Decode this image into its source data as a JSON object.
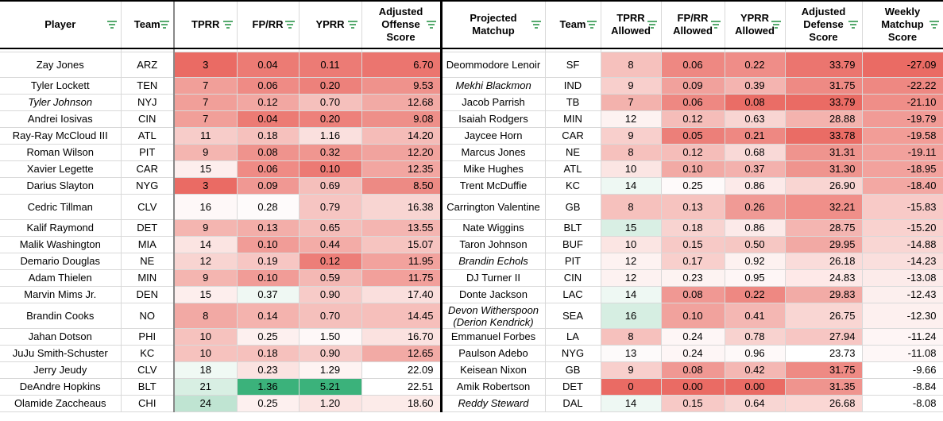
{
  "headers_offense": [
    "Player",
    "Team",
    "TPRR",
    "FP/RR",
    "YPRR",
    "Adjusted Offense Score"
  ],
  "headers_defense": [
    "Projected Matchup",
    "Team",
    "TPRR Allowed",
    "FP/RR Allowed",
    "YPRR Allowed",
    "Adjusted Defense Score",
    "Weekly Matchup Score"
  ],
  "rows": [
    {
      "player": "Zay Jones",
      "team": "ARZ",
      "tprr": "3",
      "fprr": "0.04",
      "yprr": "0.11",
      "aos": "6.70",
      "opp": "Deommodore Lenoir",
      "oteam": "SF",
      "dtprr": "8",
      "dfprr": "0.06",
      "dyprr": "0.22",
      "ads": "33.79",
      "wms": "-27.09",
      "tall": true,
      "pit": false,
      "oit": false,
      "c": [
        "#ea6b64",
        "#ec7b74",
        "#ec7b75",
        "#eb756f",
        "#f6c1bd",
        "#ee8882",
        "#ef8d88",
        "#eb756f",
        "#ea6b64"
      ]
    },
    {
      "player": "Tyler Lockett",
      "team": "TEN",
      "tprr": "7",
      "fprr": "0.06",
      "yprr": "0.20",
      "aos": "9.53",
      "opp": "Mekhi Blackmon",
      "oteam": "IND",
      "dtprr": "9",
      "dfprr": "0.09",
      "dyprr": "0.39",
      "ads": "31.75",
      "wms": "-22.22",
      "tall": false,
      "pit": false,
      "oit": true,
      "c": [
        "#f19f99",
        "#ef8b85",
        "#ed817b",
        "#ef928c",
        "#f8cfcc",
        "#f1a19c",
        "#f4b4b0",
        "#ee8a84",
        "#ee8882"
      ]
    },
    {
      "player": "Tyler Johnson",
      "team": "NYJ",
      "tprr": "7",
      "fprr": "0.12",
      "yprr": "0.70",
      "aos": "12.68",
      "opp": "Jacob Parrish",
      "oteam": "TB",
      "dtprr": "7",
      "dfprr": "0.06",
      "dyprr": "0.08",
      "ads": "33.79",
      "wms": "-21.10",
      "tall": false,
      "pit": true,
      "oit": false,
      "c": [
        "#f19f99",
        "#f2a7a2",
        "#f5c0bc",
        "#f2aaa5",
        "#f3b2ad",
        "#ee8882",
        "#ea6d66",
        "#ea6b64",
        "#ef8e88"
      ]
    },
    {
      "player": "Andrei Iosivas",
      "team": "CIN",
      "tprr": "7",
      "fprr": "0.04",
      "yprr": "0.20",
      "aos": "9.08",
      "opp": "Isaiah Rodgers",
      "oteam": "MIN",
      "dtprr": "12",
      "dfprr": "0.12",
      "dyprr": "0.63",
      "ads": "28.88",
      "wms": "-19.79",
      "tall": false,
      "pit": false,
      "oit": false,
      "c": [
        "#f19f99",
        "#ec7b74",
        "#ed817b",
        "#ee8f89",
        "#fdf2f1",
        "#f5bdb9",
        "#f8d5d2",
        "#f4b3ae",
        "#f19b96"
      ]
    },
    {
      "player": "Ray-Ray McCloud III",
      "team": "ATL",
      "tprr": "11",
      "fprr": "0.18",
      "yprr": "1.16",
      "aos": "14.20",
      "opp": "Jaycee Horn",
      "oteam": "CAR",
      "dtprr": "9",
      "dfprr": "0.05",
      "dyprr": "0.21",
      "ads": "33.78",
      "wms": "-19.58",
      "tall": false,
      "pit": false,
      "oit": false,
      "c": [
        "#f7ccc9",
        "#f6c1bd",
        "#fae0de",
        "#f5bcb8",
        "#f8cfcc",
        "#ec7f79",
        "#ee8882",
        "#ea6c65",
        "#f29d97"
      ]
    },
    {
      "player": "Roman Wilson",
      "team": "PIT",
      "tprr": "9",
      "fprr": "0.08",
      "yprr": "0.32",
      "aos": "12.20",
      "opp": "Marcus Jones",
      "oteam": "NE",
      "dtprr": "8",
      "dfprr": "0.12",
      "dyprr": "0.68",
      "ads": "31.31",
      "wms": "-19.11",
      "tall": false,
      "pit": false,
      "oit": false,
      "c": [
        "#f4b5b0",
        "#ef938d",
        "#f09690",
        "#f1a39e",
        "#f6c1bd",
        "#f5bdb9",
        "#f9d9d7",
        "#ef948e",
        "#f2a19c"
      ]
    },
    {
      "player": "Xavier Legette",
      "team": "CAR",
      "tprr": "15",
      "fprr": "0.06",
      "yprr": "0.10",
      "aos": "12.35",
      "opp": "Mike Hughes",
      "oteam": "ATL",
      "dtprr": "10",
      "dfprr": "0.10",
      "dyprr": "0.37",
      "ads": "31.30",
      "wms": "-18.95",
      "tall": false,
      "pit": false,
      "oit": false,
      "c": [
        "#fdeeed",
        "#ef8b85",
        "#ec7a74",
        "#f2a6a1",
        "#fbe5e3",
        "#f2aaa5",
        "#f3b1ad",
        "#ef948e",
        "#f2a29d"
      ]
    },
    {
      "player": "Darius Slayton",
      "team": "NYG",
      "tprr": "3",
      "fprr": "0.09",
      "yprr": "0.69",
      "aos": "8.50",
      "opp": "Trent McDuffie",
      "oteam": "KC",
      "dtprr": "14",
      "dfprr": "0.25",
      "dyprr": "0.86",
      "ads": "26.90",
      "wms": "-18.40",
      "tall": false,
      "pit": false,
      "oit": false,
      "c": [
        "#ea6b64",
        "#f09893",
        "#f5bfbb",
        "#ed8a84",
        "#eef8f3",
        "#fefafa",
        "#fceae9",
        "#f9d5d2",
        "#f3a8a3"
      ]
    },
    {
      "player": "Cedric Tillman",
      "team": "CLV",
      "tprr": "16",
      "fprr": "0.28",
      "yprr": "0.79",
      "aos": "16.38",
      "opp": "Carrington Valentine",
      "oteam": "GB",
      "dtprr": "8",
      "dfprr": "0.13",
      "dyprr": "0.26",
      "ads": "32.21",
      "wms": "-15.83",
      "tall": true,
      "pit": false,
      "oit": false,
      "c": [
        "#fef8f8",
        "#fefbfb",
        "#f6c5c2",
        "#f8d5d2",
        "#f6c1bd",
        "#f6c3bf",
        "#f09a95",
        "#f08f89",
        "#f8cac7"
      ]
    },
    {
      "player": "Kalif Raymond",
      "team": "DET",
      "tprr": "9",
      "fprr": "0.13",
      "yprr": "0.65",
      "aos": "13.55",
      "opp": "Nate Wiggins",
      "oteam": "BLT",
      "dtprr": "15",
      "dfprr": "0.18",
      "dyprr": "0.86",
      "ads": "28.75",
      "wms": "-15.20",
      "tall": false,
      "pit": false,
      "oit": false,
      "c": [
        "#f4b5b0",
        "#f3aea9",
        "#f5bdb9",
        "#f4b5b1",
        "#d9efe4",
        "#f8d3d0",
        "#fceae9",
        "#f4b5b1",
        "#f9d2cf"
      ]
    },
    {
      "player": "Malik Washington",
      "team": "MIA",
      "tprr": "14",
      "fprr": "0.10",
      "yprr": "0.44",
      "aos": "15.07",
      "opp": "Taron Johnson",
      "oteam": "BUF",
      "dtprr": "10",
      "dfprr": "0.15",
      "dyprr": "0.50",
      "ads": "29.95",
      "wms": "-14.88",
      "tall": false,
      "pit": false,
      "oit": false,
      "c": [
        "#fbe4e2",
        "#f19c97",
        "#f3aca7",
        "#f6c4c0",
        "#fbe5e3",
        "#f7c9c6",
        "#f6c7c3",
        "#f2a9a4",
        "#f9d6d3"
      ]
    },
    {
      "player": "Demario Douglas",
      "team": "NE",
      "tprr": "12",
      "fprr": "0.19",
      "yprr": "0.12",
      "aos": "11.95",
      "opp": "Brandin Echols",
      "oteam": "PIT",
      "dtprr": "12",
      "dfprr": "0.17",
      "dyprr": "0.92",
      "ads": "26.18",
      "wms": "-14.23",
      "tall": false,
      "pit": false,
      "oit": true,
      "c": [
        "#f8d4d1",
        "#f7c6c3",
        "#ed7e78",
        "#f2a29d",
        "#fdf2f1",
        "#f8cfcc",
        "#fdf1f0",
        "#fadcda",
        "#fadfdd"
      ]
    },
    {
      "player": "Adam Thielen",
      "team": "MIN",
      "tprr": "9",
      "fprr": "0.10",
      "yprr": "0.59",
      "aos": "11.75",
      "opp": "DJ Turner II",
      "oteam": "CIN",
      "dtprr": "12",
      "dfprr": "0.23",
      "dyprr": "0.95",
      "ads": "24.83",
      "wms": "-13.08",
      "tall": false,
      "pit": false,
      "oit": false,
      "c": [
        "#f4b5b0",
        "#f19c97",
        "#f4b8b4",
        "#f2a09b",
        "#fdf2f1",
        "#fdf3f2",
        "#fef6f6",
        "#fee9e8",
        "#fcebea"
      ]
    },
    {
      "player": "Marvin Mims Jr.",
      "team": "DEN",
      "tprr": "15",
      "fprr": "0.37",
      "yprr": "0.90",
      "aos": "17.40",
      "opp": "Donte Jackson",
      "oteam": "LAC",
      "dtprr": "14",
      "dfprr": "0.08",
      "dyprr": "0.22",
      "ads": "29.83",
      "wms": "-12.43",
      "tall": false,
      "pit": false,
      "oit": false,
      "c": [
        "#fdeeed",
        "#eff8f3",
        "#f7cbc8",
        "#fadfdd",
        "#eef8f3",
        "#f09893",
        "#ee8882",
        "#f2aba6",
        "#fcefee"
      ]
    },
    {
      "player": "Brandin Cooks",
      "team": "NO",
      "tprr": "8",
      "fprr": "0.14",
      "yprr": "0.70",
      "aos": "14.45",
      "opp": "Devon Witherspoon (Derion Kendrick)",
      "oteam": "SEA",
      "dtprr": "16",
      "dfprr": "0.10",
      "dyprr": "0.41",
      "ads": "26.75",
      "wms": "-12.30",
      "tall": true,
      "pit": false,
      "oit": true,
      "c": [
        "#f2a9a4",
        "#f4b3ae",
        "#f5c0bc",
        "#f6bfbb",
        "#d6eee2",
        "#f1a29d",
        "#f4b7b3",
        "#f9d6d3",
        "#fdf0ef"
      ]
    },
    {
      "player": "Jahan Dotson",
      "team": "PHI",
      "tprr": "10",
      "fprr": "0.25",
      "yprr": "1.50",
      "aos": "16.70",
      "opp": "Emmanuel Forbes",
      "oteam": "LA",
      "dtprr": "8",
      "dfprr": "0.24",
      "dyprr": "0.78",
      "ads": "27.94",
      "wms": "-11.24",
      "tall": false,
      "pit": false,
      "oit": false,
      "c": [
        "#f6c2be",
        "#fdf0ef",
        "#fef8f8",
        "#fbe2e0",
        "#f6c1bd",
        "#fef6f6",
        "#f8d2cf",
        "#f7c6c3",
        "#fef5f5"
      ]
    },
    {
      "player": "JuJu Smith-Schuster",
      "team": "KC",
      "tprr": "10",
      "fprr": "0.18",
      "yprr": "0.90",
      "aos": "12.65",
      "opp": "Paulson Adebo",
      "oteam": "NYG",
      "dtprr": "13",
      "dfprr": "0.24",
      "dyprr": "0.96",
      "ads": "23.73",
      "wms": "-11.08",
      "tall": false,
      "pit": false,
      "oit": false,
      "c": [
        "#f6c2be",
        "#f6c1bd",
        "#f7cbc8",
        "#f2aaa5",
        "#fdfafa",
        "#fef6f6",
        "#fef9f9",
        "#ffffff",
        "#fef7f7"
      ]
    },
    {
      "player": "Jerry Jeudy",
      "team": "CLV",
      "tprr": "18",
      "fprr": "0.23",
      "yprr": "1.29",
      "aos": "22.09",
      "opp": "Keisean Nixon",
      "oteam": "GB",
      "dtprr": "9",
      "dfprr": "0.08",
      "dyprr": "0.42",
      "ads": "31.75",
      "wms": "-9.66",
      "tall": false,
      "pit": false,
      "oit": false,
      "c": [
        "#f0f9f4",
        "#fbe3e1",
        "#fef3f2",
        "#ffffff",
        "#f8cfcc",
        "#f09893",
        "#f4b7b3",
        "#ee8a84",
        "#ffffff"
      ]
    },
    {
      "player": "DeAndre Hopkins",
      "team": "BLT",
      "tprr": "21",
      "fprr": "1.36",
      "yprr": "5.21",
      "aos": "22.51",
      "opp": "Amik Robertson",
      "oteam": "DET",
      "dtprr": "0",
      "dfprr": "0.00",
      "dyprr": "0.00",
      "ads": "31.35",
      "wms": "-8.84",
      "tall": false,
      "pit": false,
      "oit": false,
      "c": [
        "#d8efe3",
        "#3bb27b",
        "#3bb27b",
        "#ffffff",
        "#ea6b64",
        "#ea6b64",
        "#ea6b64",
        "#ef948e",
        "#ffffff"
      ]
    },
    {
      "player": "Olamide Zaccheaus",
      "team": "CHI",
      "tprr": "24",
      "fprr": "0.25",
      "yprr": "1.20",
      "aos": "18.60",
      "opp": "Reddy Steward",
      "oteam": "DAL",
      "dtprr": "14",
      "dfprr": "0.15",
      "dyprr": "0.64",
      "ads": "26.68",
      "wms": "-8.08",
      "tall": false,
      "pit": false,
      "oit": true,
      "c": [
        "#bfe4d2",
        "#fdf0ef",
        "#fbe4e2",
        "#fcebe9",
        "#eef8f3",
        "#f7c9c6",
        "#f8d6d3",
        "#fad7d4",
        "#ffffff"
      ]
    }
  ]
}
